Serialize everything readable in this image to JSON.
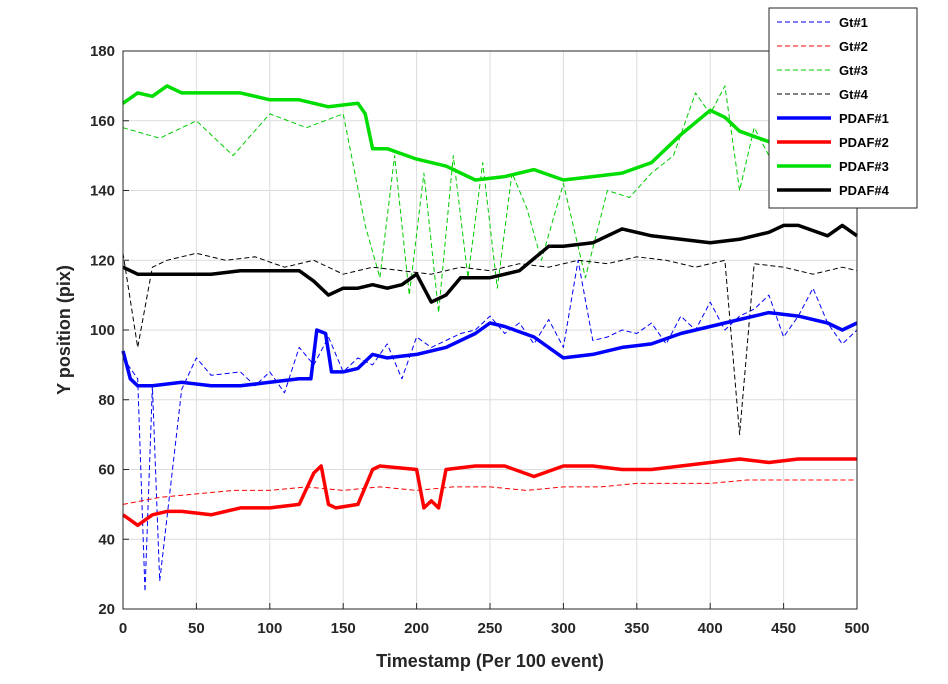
{
  "chart_data": {
    "type": "line",
    "title": "",
    "xlabel": "Timestamp (Per 100 event)",
    "ylabel": "Y position (pix)",
    "xlim": [
      0,
      500
    ],
    "ylim": [
      20,
      180
    ],
    "xticks": [
      0,
      50,
      100,
      150,
      200,
      250,
      300,
      350,
      400,
      450,
      500
    ],
    "yticks": [
      20,
      40,
      60,
      80,
      100,
      120,
      140,
      160,
      180
    ],
    "grid": true,
    "legend_position": "top-right",
    "series": [
      {
        "name": "Gt#1",
        "color": "#0000ff",
        "style": "dashed",
        "kind": "gt",
        "x": [
          0,
          10,
          15,
          20,
          25,
          40,
          50,
          60,
          80,
          90,
          100,
          110,
          120,
          130,
          140,
          150,
          160,
          170,
          180,
          190,
          200,
          210,
          220,
          230,
          240,
          250,
          260,
          270,
          280,
          290,
          300,
          310,
          320,
          330,
          340,
          350,
          360,
          370,
          380,
          390,
          400,
          410,
          420,
          430,
          440,
          450,
          460,
          470,
          480,
          490,
          500
        ],
        "y": [
          92,
          86,
          25,
          84,
          28,
          83,
          92,
          87,
          88,
          84,
          88,
          82,
          95,
          90,
          98,
          88,
          92,
          90,
          96,
          86,
          98,
          95,
          97,
          99,
          100,
          104,
          99,
          102,
          96,
          103,
          95,
          120,
          97,
          98,
          100,
          99,
          102,
          96,
          104,
          100,
          108,
          100,
          104,
          106,
          110,
          98,
          104,
          112,
          102,
          96,
          100
        ]
      },
      {
        "name": "Gt#2",
        "color": "#ff0000",
        "style": "dashed",
        "kind": "gt",
        "x": [
          0,
          25,
          50,
          75,
          100,
          125,
          150,
          175,
          200,
          225,
          250,
          275,
          300,
          325,
          350,
          375,
          400,
          425,
          450,
          475,
          500
        ],
        "y": [
          50,
          52,
          53,
          54,
          54,
          55,
          54,
          55,
          54,
          55,
          55,
          54,
          55,
          55,
          56,
          56,
          56,
          57,
          57,
          57,
          57
        ]
      },
      {
        "name": "Gt#3",
        "color": "#00cc00",
        "style": "dashed",
        "kind": "gt",
        "x": [
          0,
          25,
          50,
          75,
          100,
          125,
          150,
          165,
          175,
          185,
          195,
          205,
          215,
          225,
          235,
          245,
          255,
          265,
          275,
          285,
          300,
          315,
          330,
          345,
          360,
          375,
          390,
          400,
          410,
          420,
          430,
          440,
          450,
          470,
          500
        ],
        "y": [
          158,
          155,
          160,
          150,
          162,
          158,
          162,
          130,
          115,
          150,
          110,
          145,
          105,
          150,
          115,
          148,
          112,
          145,
          135,
          120,
          142,
          115,
          140,
          138,
          145,
          150,
          168,
          162,
          170,
          140,
          158,
          150,
          158,
          155,
          160
        ]
      },
      {
        "name": "Gt#4",
        "color": "#000000",
        "style": "dashed",
        "kind": "gt",
        "x": [
          0,
          10,
          20,
          30,
          50,
          70,
          90,
          110,
          130,
          150,
          170,
          190,
          210,
          230,
          250,
          270,
          290,
          310,
          330,
          350,
          370,
          390,
          410,
          420,
          430,
          450,
          470,
          490,
          500
        ],
        "y": [
          122,
          95,
          118,
          120,
          122,
          120,
          121,
          118,
          120,
          116,
          118,
          117,
          116,
          118,
          117,
          119,
          118,
          120,
          119,
          121,
          120,
          118,
          120,
          70,
          119,
          118,
          116,
          118,
          117
        ]
      },
      {
        "name": "PDAF#1",
        "color": "#0000ff",
        "style": "solid",
        "kind": "pdaf",
        "x": [
          0,
          5,
          10,
          20,
          40,
          60,
          80,
          100,
          120,
          128,
          132,
          138,
          142,
          150,
          160,
          170,
          180,
          200,
          220,
          240,
          250,
          260,
          280,
          300,
          320,
          340,
          360,
          380,
          400,
          420,
          440,
          460,
          480,
          490,
          500
        ],
        "y": [
          94,
          86,
          84,
          84,
          85,
          84,
          84,
          85,
          86,
          86,
          100,
          99,
          88,
          88,
          89,
          93,
          92,
          93,
          95,
          99,
          102,
          101,
          98,
          92,
          93,
          95,
          96,
          99,
          101,
          103,
          105,
          104,
          102,
          100,
          102
        ]
      },
      {
        "name": "PDAF#2",
        "color": "#ff0000",
        "style": "solid",
        "kind": "pdaf",
        "x": [
          0,
          10,
          20,
          30,
          40,
          60,
          80,
          100,
          120,
          130,
          135,
          140,
          145,
          160,
          170,
          175,
          200,
          205,
          210,
          215,
          220,
          240,
          260,
          280,
          300,
          320,
          340,
          360,
          380,
          400,
          420,
          440,
          460,
          480,
          500
        ],
        "y": [
          47,
          44,
          47,
          48,
          48,
          47,
          49,
          49,
          50,
          59,
          61,
          50,
          49,
          50,
          60,
          61,
          60,
          49,
          51,
          49,
          60,
          61,
          61,
          58,
          61,
          61,
          60,
          60,
          61,
          62,
          63,
          62,
          63,
          63,
          63
        ]
      },
      {
        "name": "PDAF#3",
        "color": "#00dd00",
        "style": "solid",
        "kind": "pdaf",
        "x": [
          0,
          10,
          20,
          30,
          40,
          60,
          80,
          100,
          120,
          140,
          160,
          165,
          170,
          180,
          200,
          220,
          240,
          260,
          280,
          300,
          320,
          340,
          360,
          380,
          400,
          410,
          420,
          440,
          460,
          480,
          500
        ],
        "y": [
          165,
          168,
          167,
          170,
          168,
          168,
          168,
          166,
          166,
          164,
          165,
          162,
          152,
          152,
          149,
          147,
          143,
          144,
          146,
          143,
          144,
          145,
          148,
          156,
          163,
          161,
          157,
          154,
          158,
          157,
          156
        ]
      },
      {
        "name": "PDAF#4",
        "color": "#000000",
        "style": "solid",
        "kind": "pdaf",
        "x": [
          0,
          10,
          20,
          40,
          60,
          80,
          100,
          120,
          130,
          140,
          150,
          160,
          170,
          180,
          190,
          200,
          210,
          220,
          230,
          250,
          270,
          290,
          300,
          320,
          340,
          360,
          380,
          400,
          420,
          440,
          450,
          460,
          480,
          490,
          500
        ],
        "y": [
          118,
          116,
          116,
          116,
          116,
          117,
          117,
          117,
          114,
          110,
          112,
          112,
          113,
          112,
          113,
          116,
          108,
          110,
          115,
          115,
          117,
          124,
          124,
          125,
          129,
          127,
          126,
          125,
          126,
          128,
          130,
          130,
          127,
          130,
          127
        ]
      }
    ]
  }
}
